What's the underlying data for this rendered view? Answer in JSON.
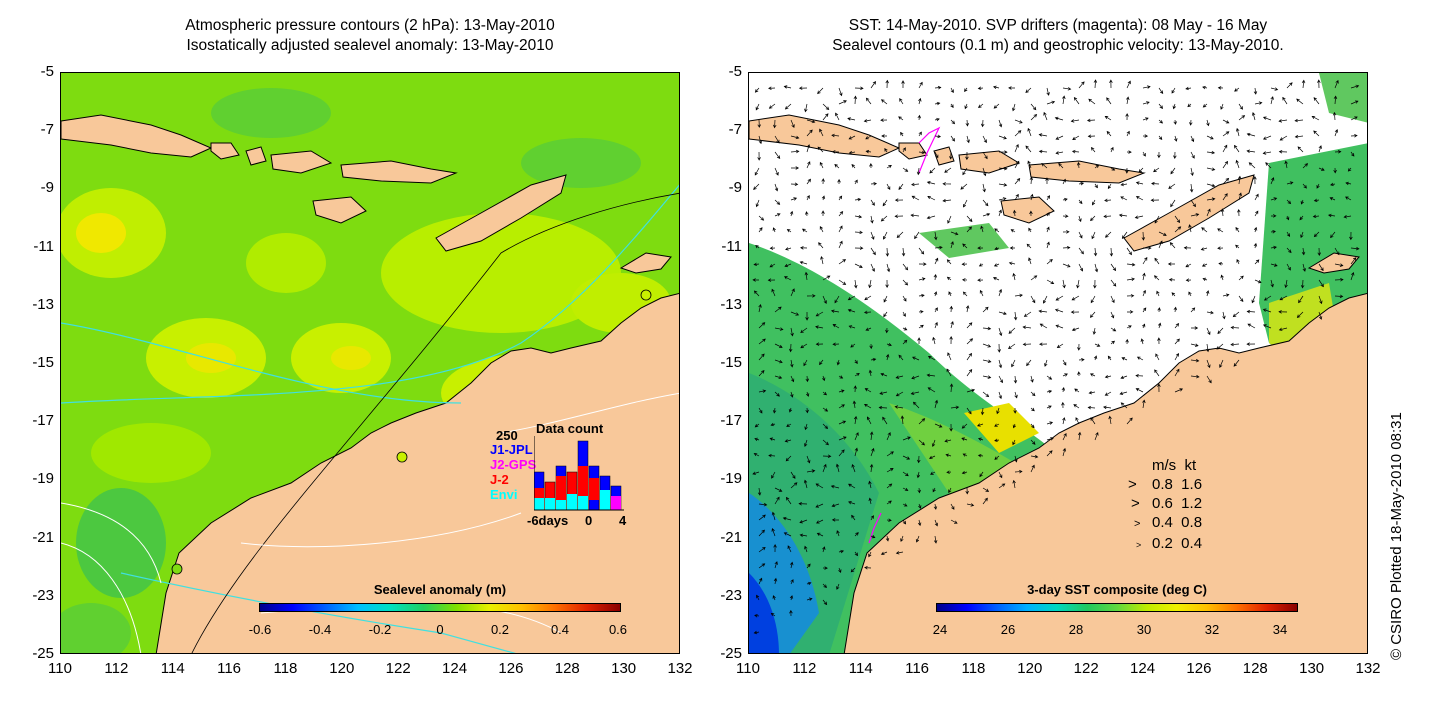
{
  "left_panel": {
    "title_line1": "Atmospheric pressure contours (2 hPa): 13-May-2010",
    "title_line2": "Isostatically adjusted sealevel anomaly: 13-May-2010",
    "colorbar_title": "Sealevel anomaly (m)",
    "colorbar_ticks": [
      "-0.6",
      "-0.4",
      "-0.2",
      "0",
      "0.2",
      "0.4",
      "0.6"
    ],
    "data_count": {
      "title": "Data count",
      "max_label": "250",
      "satellites": [
        {
          "name": "J1-JPL",
          "color": "#0000ff"
        },
        {
          "name": "J2-GPS",
          "color": "#ff00ff"
        },
        {
          "name": "J-2",
          "color": "#ff0000"
        },
        {
          "name": "Envi",
          "color": "#00ffff"
        }
      ],
      "x_labels": [
        "-6days",
        "0",
        "4"
      ]
    }
  },
  "right_panel": {
    "title_line1": "SST: 14-May-2010. SVP drifters (magenta): 08 May - 16 May",
    "title_line2": "Sealevel contours (0.1 m) and geostrophic velocity: 13-May-2010.",
    "colorbar_title": "3-day SST composite (deg C)",
    "colorbar_ticks": [
      "24",
      "26",
      "28",
      "30",
      "32",
      "34"
    ],
    "velocity_legend": {
      "header": "m/s  kt",
      "rows": [
        "0.8  1.6",
        "0.6  1.2",
        "0.4  0.8",
        "0.2  0.4"
      ]
    }
  },
  "axes": {
    "lat_ticks": [
      "-5",
      "-7",
      "-9",
      "-11",
      "-13",
      "-15",
      "-17",
      "-19",
      "-21",
      "-23",
      "-25"
    ],
    "lon_ticks": [
      "110",
      "112",
      "114",
      "116",
      "118",
      "120",
      "122",
      "124",
      "126",
      "128",
      "130",
      "132"
    ]
  },
  "credit": "© CSIRO Plotted 18-May-2010 08:31",
  "colors": {
    "land": "#f8c89a",
    "ocean_anomaly": "#80e000",
    "ocean_sst": "#40c060",
    "coast": "#000000"
  }
}
